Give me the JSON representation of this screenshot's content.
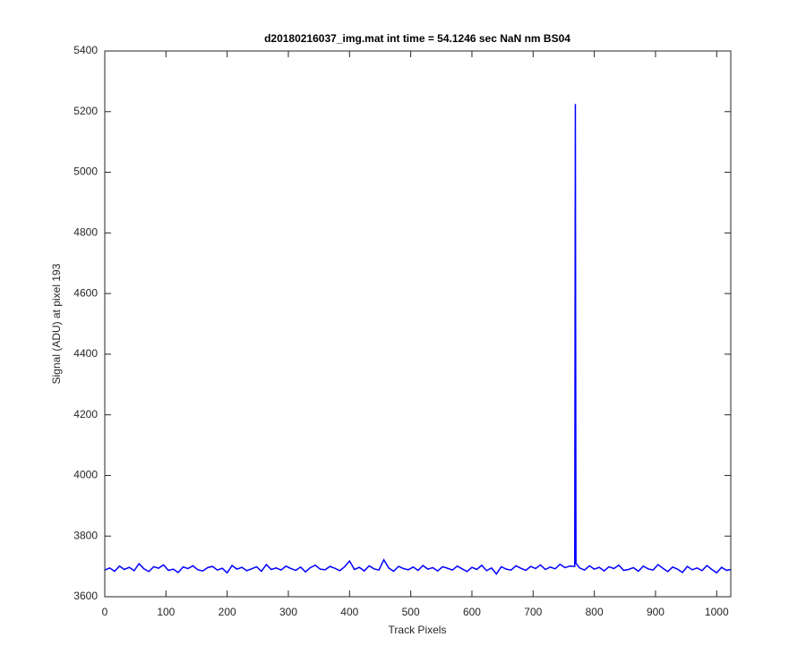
{
  "chart_data": {
    "type": "line",
    "title": "d20180216037_img.mat int time = 54.1246 sec  NaN nm BS04",
    "x_label": "Track Pixels",
    "y_label": "Signal (ADU) at pixel 193",
    "xlim": [
      0,
      1023
    ],
    "ylim": [
      3600,
      5400
    ],
    "xticks": [
      0,
      100,
      200,
      300,
      400,
      500,
      600,
      700,
      800,
      900,
      1000
    ],
    "yticks": [
      3600,
      3800,
      4000,
      4200,
      4400,
      4600,
      4800,
      5000,
      5200,
      5400
    ],
    "grid": false,
    "x": [
      0,
      8,
      16,
      24,
      32,
      40,
      48,
      56,
      64,
      72,
      80,
      88,
      96,
      104,
      112,
      120,
      128,
      136,
      144,
      152,
      160,
      168,
      176,
      184,
      192,
      200,
      208,
      216,
      224,
      232,
      240,
      248,
      256,
      264,
      272,
      280,
      288,
      296,
      304,
      312,
      320,
      328,
      336,
      344,
      352,
      360,
      368,
      376,
      384,
      392,
      400,
      408,
      416,
      424,
      432,
      440,
      448,
      456,
      464,
      472,
      480,
      488,
      496,
      504,
      512,
      520,
      528,
      536,
      544,
      552,
      560,
      568,
      576,
      584,
      592,
      600,
      608,
      616,
      624,
      632,
      640,
      648,
      656,
      664,
      672,
      680,
      688,
      696,
      704,
      712,
      720,
      728,
      736,
      744,
      752,
      760,
      768,
      769,
      770,
      776,
      784,
      792,
      800,
      808,
      816,
      824,
      832,
      840,
      848,
      856,
      864,
      872,
      880,
      888,
      896,
      904,
      912,
      920,
      928,
      936,
      944,
      952,
      960,
      968,
      976,
      984,
      992,
      1000,
      1008,
      1016,
      1023
    ],
    "series": [
      {
        "color": "#0000ff",
        "values": [
          3688,
          3695,
          3684,
          3701,
          3690,
          3697,
          3686,
          3709,
          3692,
          3683,
          3699,
          3694,
          3705,
          3687,
          3691,
          3680,
          3698,
          3693,
          3702,
          3689,
          3685,
          3696,
          3700,
          3688,
          3694,
          3679,
          3703,
          3691,
          3697,
          3686,
          3692,
          3699,
          3684,
          3706,
          3690,
          3695,
          3688,
          3701,
          3693,
          3687,
          3698,
          3682,
          3696,
          3704,
          3691,
          3689,
          3700,
          3694,
          3686,
          3699,
          3718,
          3690,
          3697,
          3685,
          3702,
          3692,
          3688,
          3722,
          3695,
          3684,
          3700,
          3693,
          3689,
          3698,
          3687,
          3703,
          3691,
          3696,
          3685,
          3699,
          3694,
          3688,
          3701,
          3692,
          3683,
          3697,
          3690,
          3704,
          3686,
          3695,
          3675,
          3699,
          3691,
          3688,
          3702,
          3694,
          3687,
          3700,
          3693,
          3705,
          3690,
          3698,
          3692,
          3707,
          3696,
          3701,
          3700,
          5225,
          3710,
          3695,
          3688,
          3702,
          3691,
          3697,
          3685,
          3699,
          3693,
          3704,
          3687,
          3690,
          3696,
          3684,
          3701,
          3692,
          3688,
          3706,
          3694,
          3683,
          3698,
          3691,
          3680,
          3700,
          3689,
          3695,
          3686,
          3703,
          3690,
          3679,
          3697,
          3687,
          3690
        ]
      }
    ]
  }
}
